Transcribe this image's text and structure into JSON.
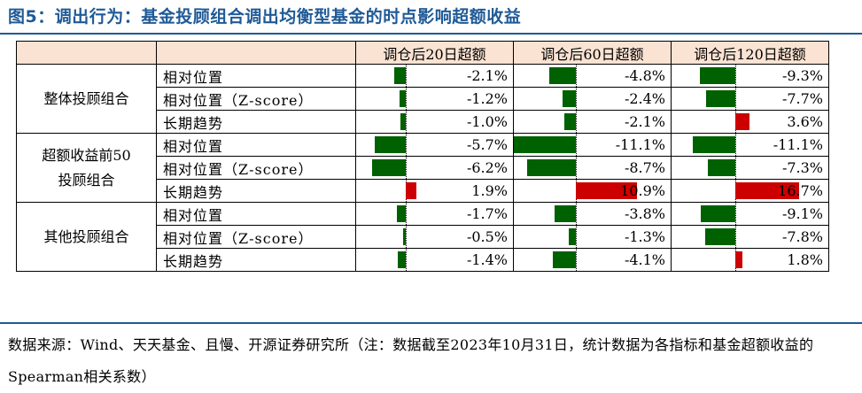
{
  "title": "图5：调出行为：基金投顾组合调出均衡型基金的时点影响超额收益",
  "table": {
    "headers": [
      "调仓后20日超额",
      "调仓后60日超额",
      "调仓后120日超额"
    ],
    "groups": [
      {
        "label_lines": [
          "整体投顾组合"
        ],
        "rows": [
          {
            "metric": "相对位置",
            "values": [
              -2.1,
              -4.8,
              -9.3
            ],
            "labels": [
              "-2.1%",
              "-4.8%",
              "-9.3%"
            ]
          },
          {
            "metric": "相对位置（Z-score）",
            "values": [
              -1.2,
              -2.4,
              -7.7
            ],
            "labels": [
              "-1.2%",
              "-2.4%",
              "-7.7%"
            ]
          },
          {
            "metric": "长期趋势",
            "values": [
              -1.0,
              -2.1,
              3.6
            ],
            "labels": [
              "-1.0%",
              "-2.1%",
              "3.6%"
            ]
          }
        ]
      },
      {
        "label_lines": [
          "超额收益前50",
          "投顾组合"
        ],
        "rows": [
          {
            "metric": "相对位置",
            "values": [
              -5.7,
              -11.1,
              -11.1
            ],
            "labels": [
              "-5.7%",
              "-11.1%",
              "-11.1%"
            ]
          },
          {
            "metric": "相对位置（Z-score）",
            "values": [
              -6.2,
              -8.7,
              -7.3
            ],
            "labels": [
              "-6.2%",
              "-8.7%",
              "-7.3%"
            ]
          },
          {
            "metric": "长期趋势",
            "values": [
              1.9,
              10.9,
              16.7
            ],
            "labels": [
              "1.9%",
              "10.9%",
              "16.7%"
            ]
          }
        ]
      },
      {
        "label_lines": [
          "其他投顾组合"
        ],
        "rows": [
          {
            "metric": "相对位置",
            "values": [
              -1.7,
              -3.8,
              -9.1
            ],
            "labels": [
              "-1.7%",
              "-3.8%",
              "-9.1%"
            ]
          },
          {
            "metric": "相对位置（Z-score）",
            "values": [
              -0.5,
              -1.3,
              -7.8
            ],
            "labels": [
              "-0.5%",
              "-1.3%",
              "-7.8%"
            ]
          },
          {
            "metric": "长期趋势",
            "values": [
              -1.4,
              -4.1,
              1.8
            ],
            "labels": [
              "-1.4%",
              "-4.1%",
              "1.8%"
            ]
          }
        ]
      }
    ]
  },
  "source_note": "数据来源：Wind、天天基金、且慢、开源证券研究所（注：数据截至2023年10月31日，统计数据为各指标和基金超额收益的Spearman相关系数）",
  "colors": {
    "positive": "#cc0000",
    "negative": "#006100",
    "header_bg": "#fbe3d3",
    "title": "#1f5a96"
  }
}
